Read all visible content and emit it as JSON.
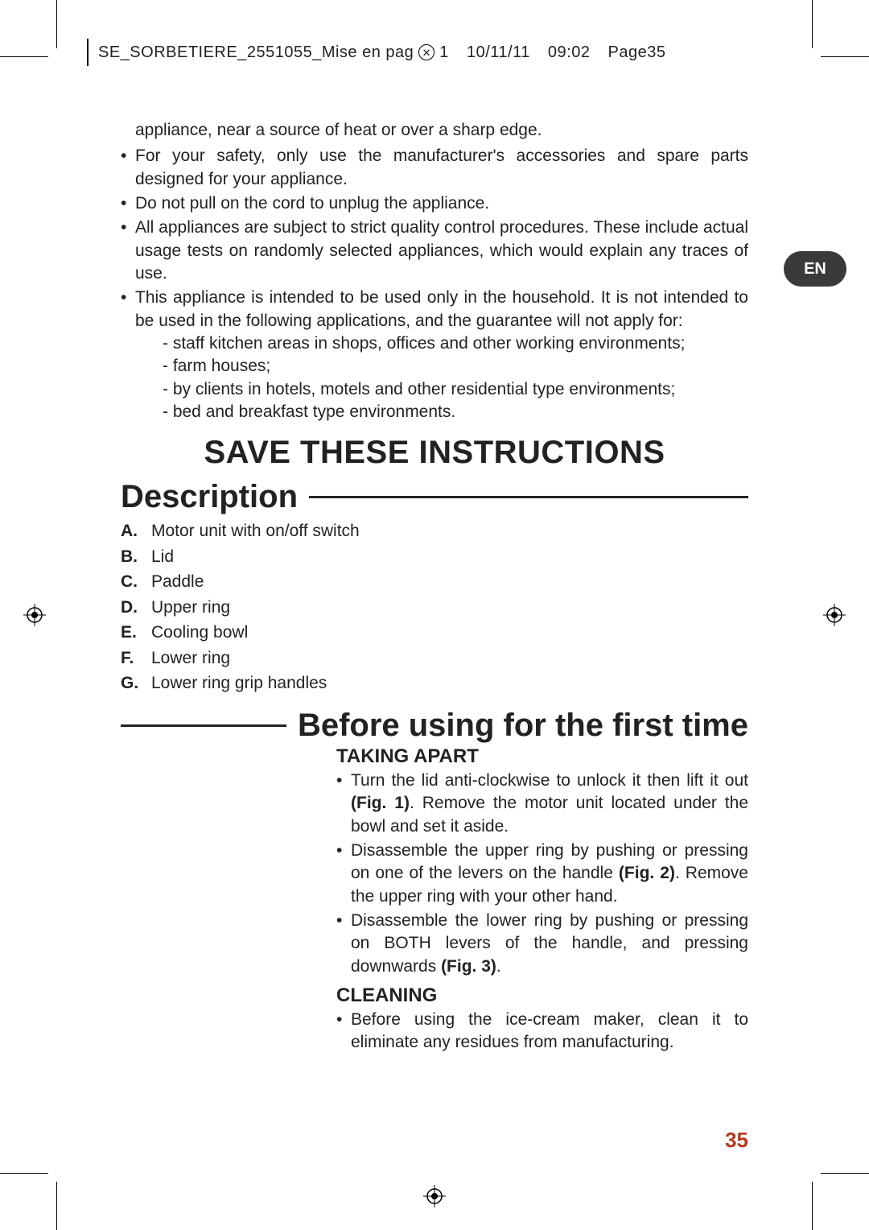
{
  "header": {
    "doc": "SE_SORBETIERE_2551055_Mise en pag",
    "rev": "1",
    "date": "10/11/11",
    "time": "09:02",
    "page": "Page35"
  },
  "langTab": "EN",
  "intro": {
    "lead": "appliance, near a source of heat or over a sharp edge.",
    "bullets": [
      "For your safety, only use the manufacturer's accessories and spare parts designed for your appliance.",
      "Do not pull on the cord to unplug the appliance.",
      "All appliances are subject to strict quality control procedures. These include actual usage tests on randomly selected appliances, which would explain any traces of use.",
      "This appliance is intended to be used only in the household. It is not intended to be used in the following applications, and the guarantee will not apply for:"
    ],
    "subs": [
      "- staff kitchen areas in shops, offices and other working environments;",
      "- farm houses;",
      "- by clients in hotels, motels and other residential type environments;",
      "- bed and breakfast type environments."
    ]
  },
  "saveTitle": "SAVE THESE INSTRUCTIONS",
  "descTitle": "Description",
  "descItems": [
    {
      "label": "A.",
      "text": "Motor unit with on/off switch"
    },
    {
      "label": "B.",
      "text": "Lid"
    },
    {
      "label": "C.",
      "text": "Paddle"
    },
    {
      "label": "D.",
      "text": "Upper ring"
    },
    {
      "label": "E.",
      "text": "Cooling bowl"
    },
    {
      "label": "F.",
      "text": "Lower ring"
    },
    {
      "label": "G.",
      "text": "Lower ring grip handles"
    }
  ],
  "beforeTitle": "Before using for the first time",
  "taking": {
    "heading": "TAKING APART",
    "bullets": [
      {
        "pre": "Turn the lid anti-clockwise to unlock it then lift it out ",
        "bold": "(Fig. 1)",
        "post": ". Remove the motor unit located under the bowl and set it aside."
      },
      {
        "pre": "Disassemble the upper ring by pushing or pressing on one of the levers on the handle ",
        "bold": "(Fig. 2)",
        "post": ". Remove the upper ring with your other hand."
      },
      {
        "pre": "Disassemble the lower ring by pushing or pressing on BOTH levers of the handle, and pressing downwards ",
        "bold": "(Fig. 3)",
        "post": "."
      }
    ]
  },
  "cleaning": {
    "heading": "CLEANING",
    "bullets": [
      "Before using the  ice-cream maker, clean it to eliminate any residues from manufacturing."
    ]
  },
  "pageNumber": "35",
  "colors": {
    "accent": "#b53a1e",
    "tab": "#3a3a3a",
    "text": "#222222"
  }
}
